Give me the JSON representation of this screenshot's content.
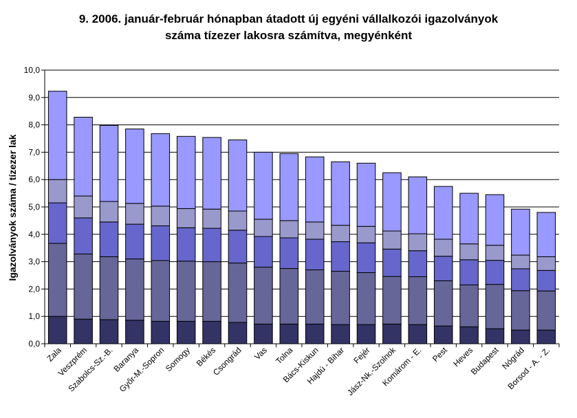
{
  "chart_data": {
    "type": "bar",
    "stacked": true,
    "title_line1": "9.   2006. január-február hónapban átadott új egyéni vállalkozói  igazolványok",
    "title_line2": "száma tízezer lakosra számítva, megyénként",
    "ylabel": "Igazolványok száma / tízezer lak",
    "xlabel": "",
    "ylim": [
      0,
      10
    ],
    "ytick_labels": [
      "0,0",
      "1,0",
      "2,0",
      "3,0",
      "4,0",
      "5,0",
      "6,0",
      "7,0",
      "8,0",
      "9,0",
      "10,0"
    ],
    "grid": true,
    "legend": "none",
    "categories": [
      "Zala",
      "Veszprém",
      "Szabolcs-Sz.-B.",
      "Baranya",
      "Győr-M.-Sopron",
      "Somogy",
      "Békés",
      "Csongrád",
      "Vas",
      "Tolna",
      "Bács-Kiskun",
      "Hajdú - Bihar",
      "Fejér",
      "Jász-Nk.-Szolnok",
      "Komárom - E.",
      "Pest",
      "Heves",
      "Budapest",
      "Nógrád",
      "Borsod - A. - Z."
    ],
    "series": [
      {
        "color": "#333366",
        "values": [
          1.0,
          0.9,
          0.88,
          0.86,
          0.82,
          0.82,
          0.82,
          0.78,
          0.72,
          0.72,
          0.72,
          0.7,
          0.7,
          0.72,
          0.7,
          0.65,
          0.62,
          0.55,
          0.5,
          0.5
        ]
      },
      {
        "color": "#666699",
        "values": [
          2.67,
          2.38,
          2.3,
          2.24,
          2.22,
          2.2,
          2.18,
          2.17,
          2.08,
          2.03,
          1.98,
          1.95,
          1.9,
          1.74,
          1.75,
          1.65,
          1.53,
          1.62,
          1.44,
          1.43
        ]
      },
      {
        "color": "#6666cc",
        "values": [
          1.48,
          1.32,
          1.27,
          1.27,
          1.27,
          1.22,
          1.22,
          1.2,
          1.12,
          1.12,
          1.12,
          1.08,
          1.09,
          1.0,
          0.95,
          0.9,
          0.92,
          0.88,
          0.8,
          0.75
        ]
      },
      {
        "color": "#9999cc",
        "values": [
          0.85,
          0.8,
          0.75,
          0.76,
          0.72,
          0.7,
          0.7,
          0.7,
          0.63,
          0.63,
          0.63,
          0.6,
          0.6,
          0.66,
          0.62,
          0.62,
          0.58,
          0.55,
          0.5,
          0.5
        ]
      },
      {
        "color": "#9999ff",
        "values": [
          3.23,
          2.88,
          2.78,
          2.72,
          2.65,
          2.64,
          2.62,
          2.6,
          2.45,
          2.45,
          2.38,
          2.32,
          2.31,
          2.13,
          2.08,
          1.93,
          1.85,
          1.85,
          1.68,
          1.62
        ]
      }
    ]
  }
}
